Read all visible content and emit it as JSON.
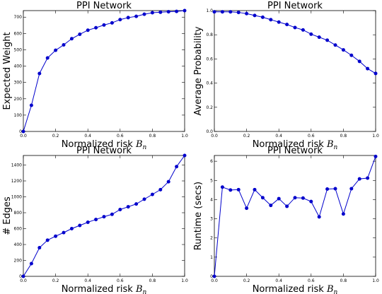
{
  "chart_data": [
    {
      "type": "line",
      "title": "PPI Network",
      "xlabel_text": "Normalized risk",
      "xlabel_symbol": "B",
      "xlabel_subscript": "n",
      "ylabel": "Expected Weight",
      "xlim": [
        0,
        1
      ],
      "ylim": [
        0,
        740
      ],
      "xticks": [
        "0.0",
        "0.2",
        "0.4",
        "0.6",
        "0.8",
        "1.0"
      ],
      "yticks": [
        "0",
        "100",
        "200",
        "300",
        "400",
        "500",
        "600",
        "700"
      ],
      "grid": false,
      "series": [
        {
          "color": "#0000cc",
          "x": [
            0,
            0.05,
            0.1,
            0.15,
            0.2,
            0.25,
            0.3,
            0.35,
            0.4,
            0.45,
            0.5,
            0.55,
            0.6,
            0.65,
            0.7,
            0.75,
            0.8,
            0.85,
            0.9,
            0.95,
            1.0
          ],
          "y": [
            0,
            160,
            355,
            450,
            497,
            530,
            568,
            595,
            620,
            635,
            652,
            665,
            685,
            697,
            705,
            718,
            727,
            730,
            733,
            735,
            740
          ]
        }
      ]
    },
    {
      "type": "line",
      "title": "PPI Network",
      "xlabel_text": "Normalized risk",
      "xlabel_symbol": "B",
      "xlabel_subscript": "n",
      "ylabel": "Average Probability",
      "xlim": [
        0,
        1
      ],
      "ylim": [
        0,
        1
      ],
      "xticks": [
        "0.0",
        "0.2",
        "0.4",
        "0.6",
        "0.8",
        "1.0"
      ],
      "yticks": [
        "0.0",
        "0.2",
        "0.4",
        "0.6",
        "0.8",
        "1.0"
      ],
      "grid": false,
      "series": [
        {
          "color": "#0000cc",
          "x": [
            0,
            0.05,
            0.1,
            0.15,
            0.2,
            0.25,
            0.3,
            0.35,
            0.4,
            0.45,
            0.5,
            0.55,
            0.6,
            0.65,
            0.7,
            0.75,
            0.8,
            0.85,
            0.9,
            0.95,
            1.0
          ],
          "y": [
            0.99,
            0.99,
            0.99,
            0.985,
            0.975,
            0.96,
            0.945,
            0.925,
            0.905,
            0.885,
            0.86,
            0.84,
            0.805,
            0.78,
            0.755,
            0.715,
            0.675,
            0.63,
            0.58,
            0.52,
            0.48
          ]
        }
      ]
    },
    {
      "type": "line",
      "title": "PPI Network",
      "xlabel_text": "Normalized risk",
      "xlabel_symbol": "B",
      "xlabel_subscript": "n",
      "ylabel": "# Edges",
      "xlim": [
        0,
        1
      ],
      "ylim": [
        0,
        1520
      ],
      "xticks": [
        "0.0",
        "0.2",
        "0.4",
        "0.6",
        "0.8",
        "1.0"
      ],
      "yticks": [
        "0",
        "200",
        "400",
        "600",
        "800",
        "1000",
        "1200",
        "1400"
      ],
      "grid": false,
      "series": [
        {
          "color": "#0000cc",
          "x": [
            0,
            0.05,
            0.1,
            0.15,
            0.2,
            0.25,
            0.3,
            0.35,
            0.4,
            0.45,
            0.5,
            0.55,
            0.6,
            0.65,
            0.7,
            0.75,
            0.8,
            0.85,
            0.9,
            0.95,
            1.0
          ],
          "y": [
            0,
            160,
            360,
            455,
            505,
            550,
            600,
            640,
            680,
            715,
            750,
            780,
            840,
            875,
            910,
            970,
            1030,
            1090,
            1190,
            1380,
            1520
          ]
        }
      ]
    },
    {
      "type": "line",
      "title": "PPI Network",
      "xlabel_text": "Normalized risk",
      "xlabel_symbol": "B",
      "xlabel_subscript": "n",
      "ylabel": "Runtime (secs)",
      "xlim": [
        0,
        1
      ],
      "ylim": [
        0,
        6.3
      ],
      "xticks": [
        "0.0",
        "0.2",
        "0.4",
        "0.6",
        "0.8",
        "1.0"
      ],
      "yticks": [
        "0",
        "1",
        "2",
        "3",
        "4",
        "5",
        "6"
      ],
      "grid": false,
      "series": [
        {
          "color": "#0000cc",
          "x": [
            0,
            0.05,
            0.1,
            0.15,
            0.2,
            0.25,
            0.3,
            0.35,
            0.4,
            0.45,
            0.5,
            0.55,
            0.6,
            0.65,
            0.7,
            0.75,
            0.8,
            0.85,
            0.9,
            0.95,
            1.0
          ],
          "y": [
            0,
            4.65,
            4.5,
            4.52,
            3.55,
            4.52,
            4.1,
            3.7,
            4.05,
            3.65,
            4.1,
            4.08,
            3.9,
            3.1,
            4.55,
            4.57,
            3.25,
            4.57,
            5.08,
            5.12,
            6.25
          ]
        }
      ]
    }
  ]
}
